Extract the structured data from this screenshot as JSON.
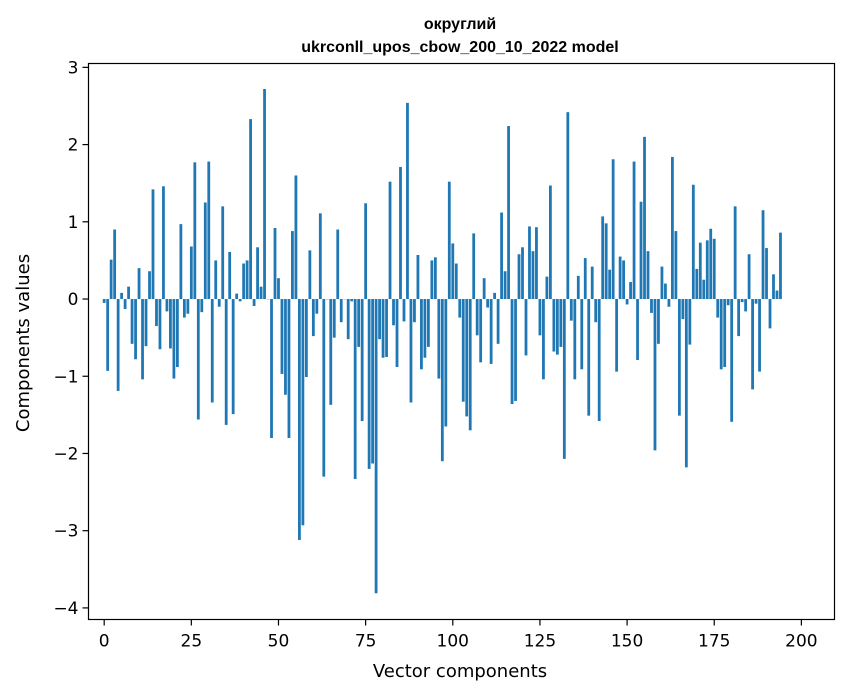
{
  "chart_data": {
    "type": "bar",
    "title_line1": "округлий",
    "title_line2": "ukrconll_upos_cbow_200_10_2022 model",
    "xlabel": "Vector components",
    "ylabel": "Components values",
    "xlim": [
      -4.5,
      209.5
    ],
    "ylim": [
      -4.15,
      3.05
    ],
    "xticks": [
      0,
      25,
      50,
      75,
      100,
      125,
      150,
      175,
      200
    ],
    "yticks": [
      -4,
      -3,
      -2,
      -1,
      0,
      1,
      2,
      3
    ],
    "bar_color": "#1f77b4",
    "grid": false,
    "values": [
      -0.05,
      -0.93,
      0.51,
      0.9,
      -1.19,
      0.08,
      -0.13,
      0.16,
      -0.58,
      -0.78,
      0.4,
      -1.04,
      -0.61,
      0.36,
      1.42,
      -0.35,
      -0.65,
      1.46,
      -0.16,
      -0.64,
      -1.03,
      -0.88,
      0.97,
      -0.24,
      -0.19,
      0.68,
      1.77,
      -1.56,
      -0.17,
      1.25,
      1.78,
      -1.34,
      0.5,
      -0.1,
      1.2,
      -1.63,
      0.61,
      -1.49,
      0.07,
      -0.03,
      0.46,
      0.5,
      2.33,
      -0.09,
      0.67,
      0.16,
      2.72,
      0.0,
      -1.8,
      0.92,
      0.27,
      -0.97,
      -1.24,
      -1.8,
      0.88,
      1.6,
      -3.12,
      -2.93,
      -1.01,
      0.63,
      -0.48,
      -0.19,
      1.11,
      -2.3,
      0.0,
      -1.37,
      -0.5,
      0.9,
      -0.3,
      0.0,
      -0.52,
      -0.03,
      -2.33,
      -0.62,
      -1.58,
      1.24,
      -2.2,
      -2.13,
      -3.81,
      -0.52,
      -0.76,
      -0.75,
      1.52,
      -0.34,
      -0.88,
      1.71,
      -0.29,
      2.54,
      -1.34,
      -0.3,
      0.57,
      -0.91,
      -0.76,
      -0.62,
      0.5,
      0.54,
      -1.03,
      -2.1,
      -1.65,
      1.52,
      0.72,
      0.46,
      -0.24,
      -1.33,
      -1.52,
      -1.7,
      0.85,
      -0.47,
      -0.82,
      0.27,
      -0.11,
      -0.84,
      0.08,
      -0.58,
      1.12,
      0.36,
      2.24,
      -1.36,
      -1.32,
      0.58,
      0.67,
      -0.73,
      0.94,
      0.62,
      0.93,
      -0.47,
      -1.04,
      0.29,
      1.47,
      -0.68,
      -0.72,
      -0.62,
      -2.07,
      2.42,
      -0.28,
      -1.04,
      0.3,
      -0.91,
      0.53,
      -1.51,
      0.42,
      -0.3,
      -1.58,
      1.07,
      0.98,
      0.38,
      1.81,
      -0.94,
      0.55,
      0.5,
      -0.07,
      0.22,
      1.78,
      -0.79,
      1.26,
      2.1,
      0.62,
      -0.18,
      -1.96,
      -0.58,
      0.42,
      0.2,
      -0.1,
      1.84,
      0.88,
      -1.51,
      -0.26,
      -2.18,
      -0.59,
      1.48,
      0.39,
      0.73,
      0.25,
      0.76,
      0.91,
      0.78,
      -0.24,
      -0.91,
      -0.88,
      -0.08,
      -1.59,
      1.2,
      -0.48,
      -0.04,
      -0.16,
      0.58,
      -1.17,
      -0.06,
      -0.94,
      1.15,
      0.66,
      -0.38,
      0.32,
      0.11,
      0.86
    ]
  }
}
